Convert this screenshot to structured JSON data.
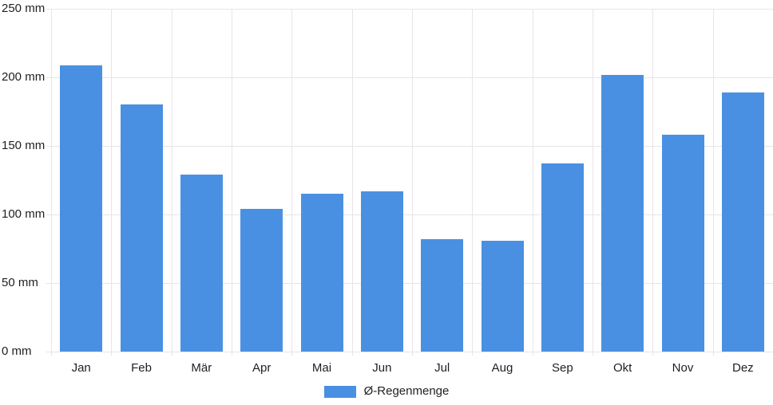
{
  "chart_data": {
    "type": "bar",
    "categories": [
      "Jan",
      "Feb",
      "Mär",
      "Apr",
      "Mai",
      "Jun",
      "Jul",
      "Aug",
      "Sep",
      "Okt",
      "Nov",
      "Dez"
    ],
    "series": [
      {
        "name": "Ø-Regenmenge",
        "values": [
          209,
          180,
          129,
          104,
          115,
          117,
          82,
          81,
          137,
          202,
          158,
          189
        ]
      }
    ],
    "title": "",
    "xlabel": "",
    "ylabel": "",
    "ylim": [
      0,
      250
    ],
    "y_tick_interval": 50,
    "y_tick_labels": [
      "0 mm",
      "50 mm",
      "100 mm",
      "150 mm",
      "200 mm",
      "250 mm"
    ],
    "unit": "mm",
    "grid": true,
    "legend_position": "bottom"
  },
  "legend": {
    "label": "Ø-Regenmenge",
    "swatch_color": "#4a90e2"
  },
  "colors": {
    "bar": "#4a90e2",
    "gridline": "#e6e6e6",
    "label_text": "#1f1f1f",
    "background": "#ffffff"
  }
}
